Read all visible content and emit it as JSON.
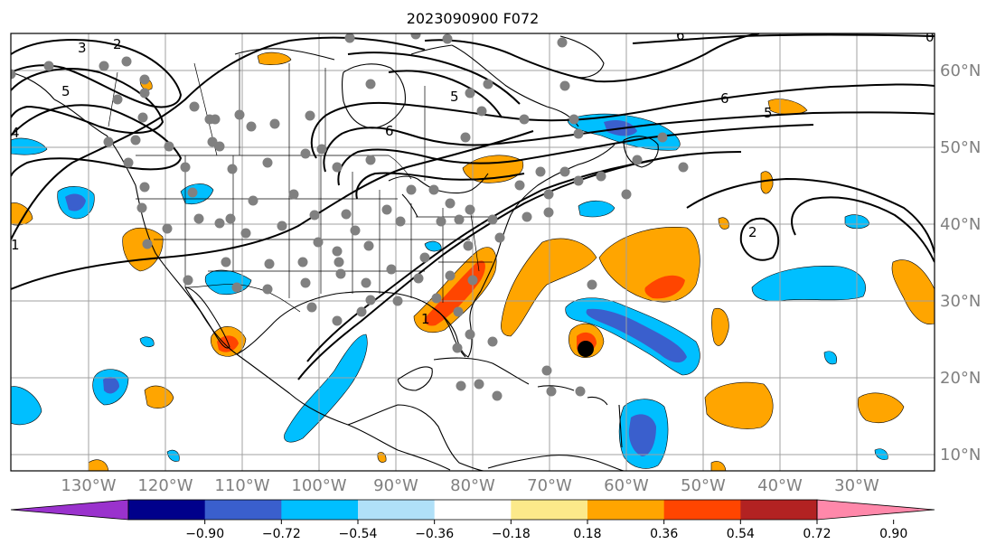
{
  "title": "2023090900 F072",
  "lon_labels": [
    "130°W",
    "120°W",
    "110°W",
    "100°W",
    "90°W",
    "80°W",
    "70°W",
    "60°W",
    "50°W",
    "40°W",
    "30°W"
  ],
  "lat_labels": [
    "60°N",
    "50°N",
    "40°N",
    "30°N",
    "20°N",
    "10°N"
  ],
  "contour_labels": [
    "3",
    "2",
    "5",
    "4",
    "1",
    "5",
    "6",
    "6",
    "5",
    "2",
    "1",
    "6",
    "0"
  ],
  "colorbar": {
    "ticks": [
      "−0.90",
      "−0.72",
      "−0.54",
      "−0.36",
      "−0.18",
      "0.18",
      "0.36",
      "0.54",
      "0.72",
      "0.90"
    ],
    "colors": [
      "#9a32cd",
      "#00008b",
      "#3a5fcd",
      "#00bfff",
      "#b0e0f8",
      "#ffffff",
      "#fce98a",
      "#ffa500",
      "#ff4500",
      "#b22222",
      "#ff88aa"
    ]
  },
  "colors": {
    "land_outline": "#000000",
    "grid": "#a0a0a0",
    "station_dot": "#808080",
    "storm_center": "#000000",
    "axis_label": "#808080"
  }
}
